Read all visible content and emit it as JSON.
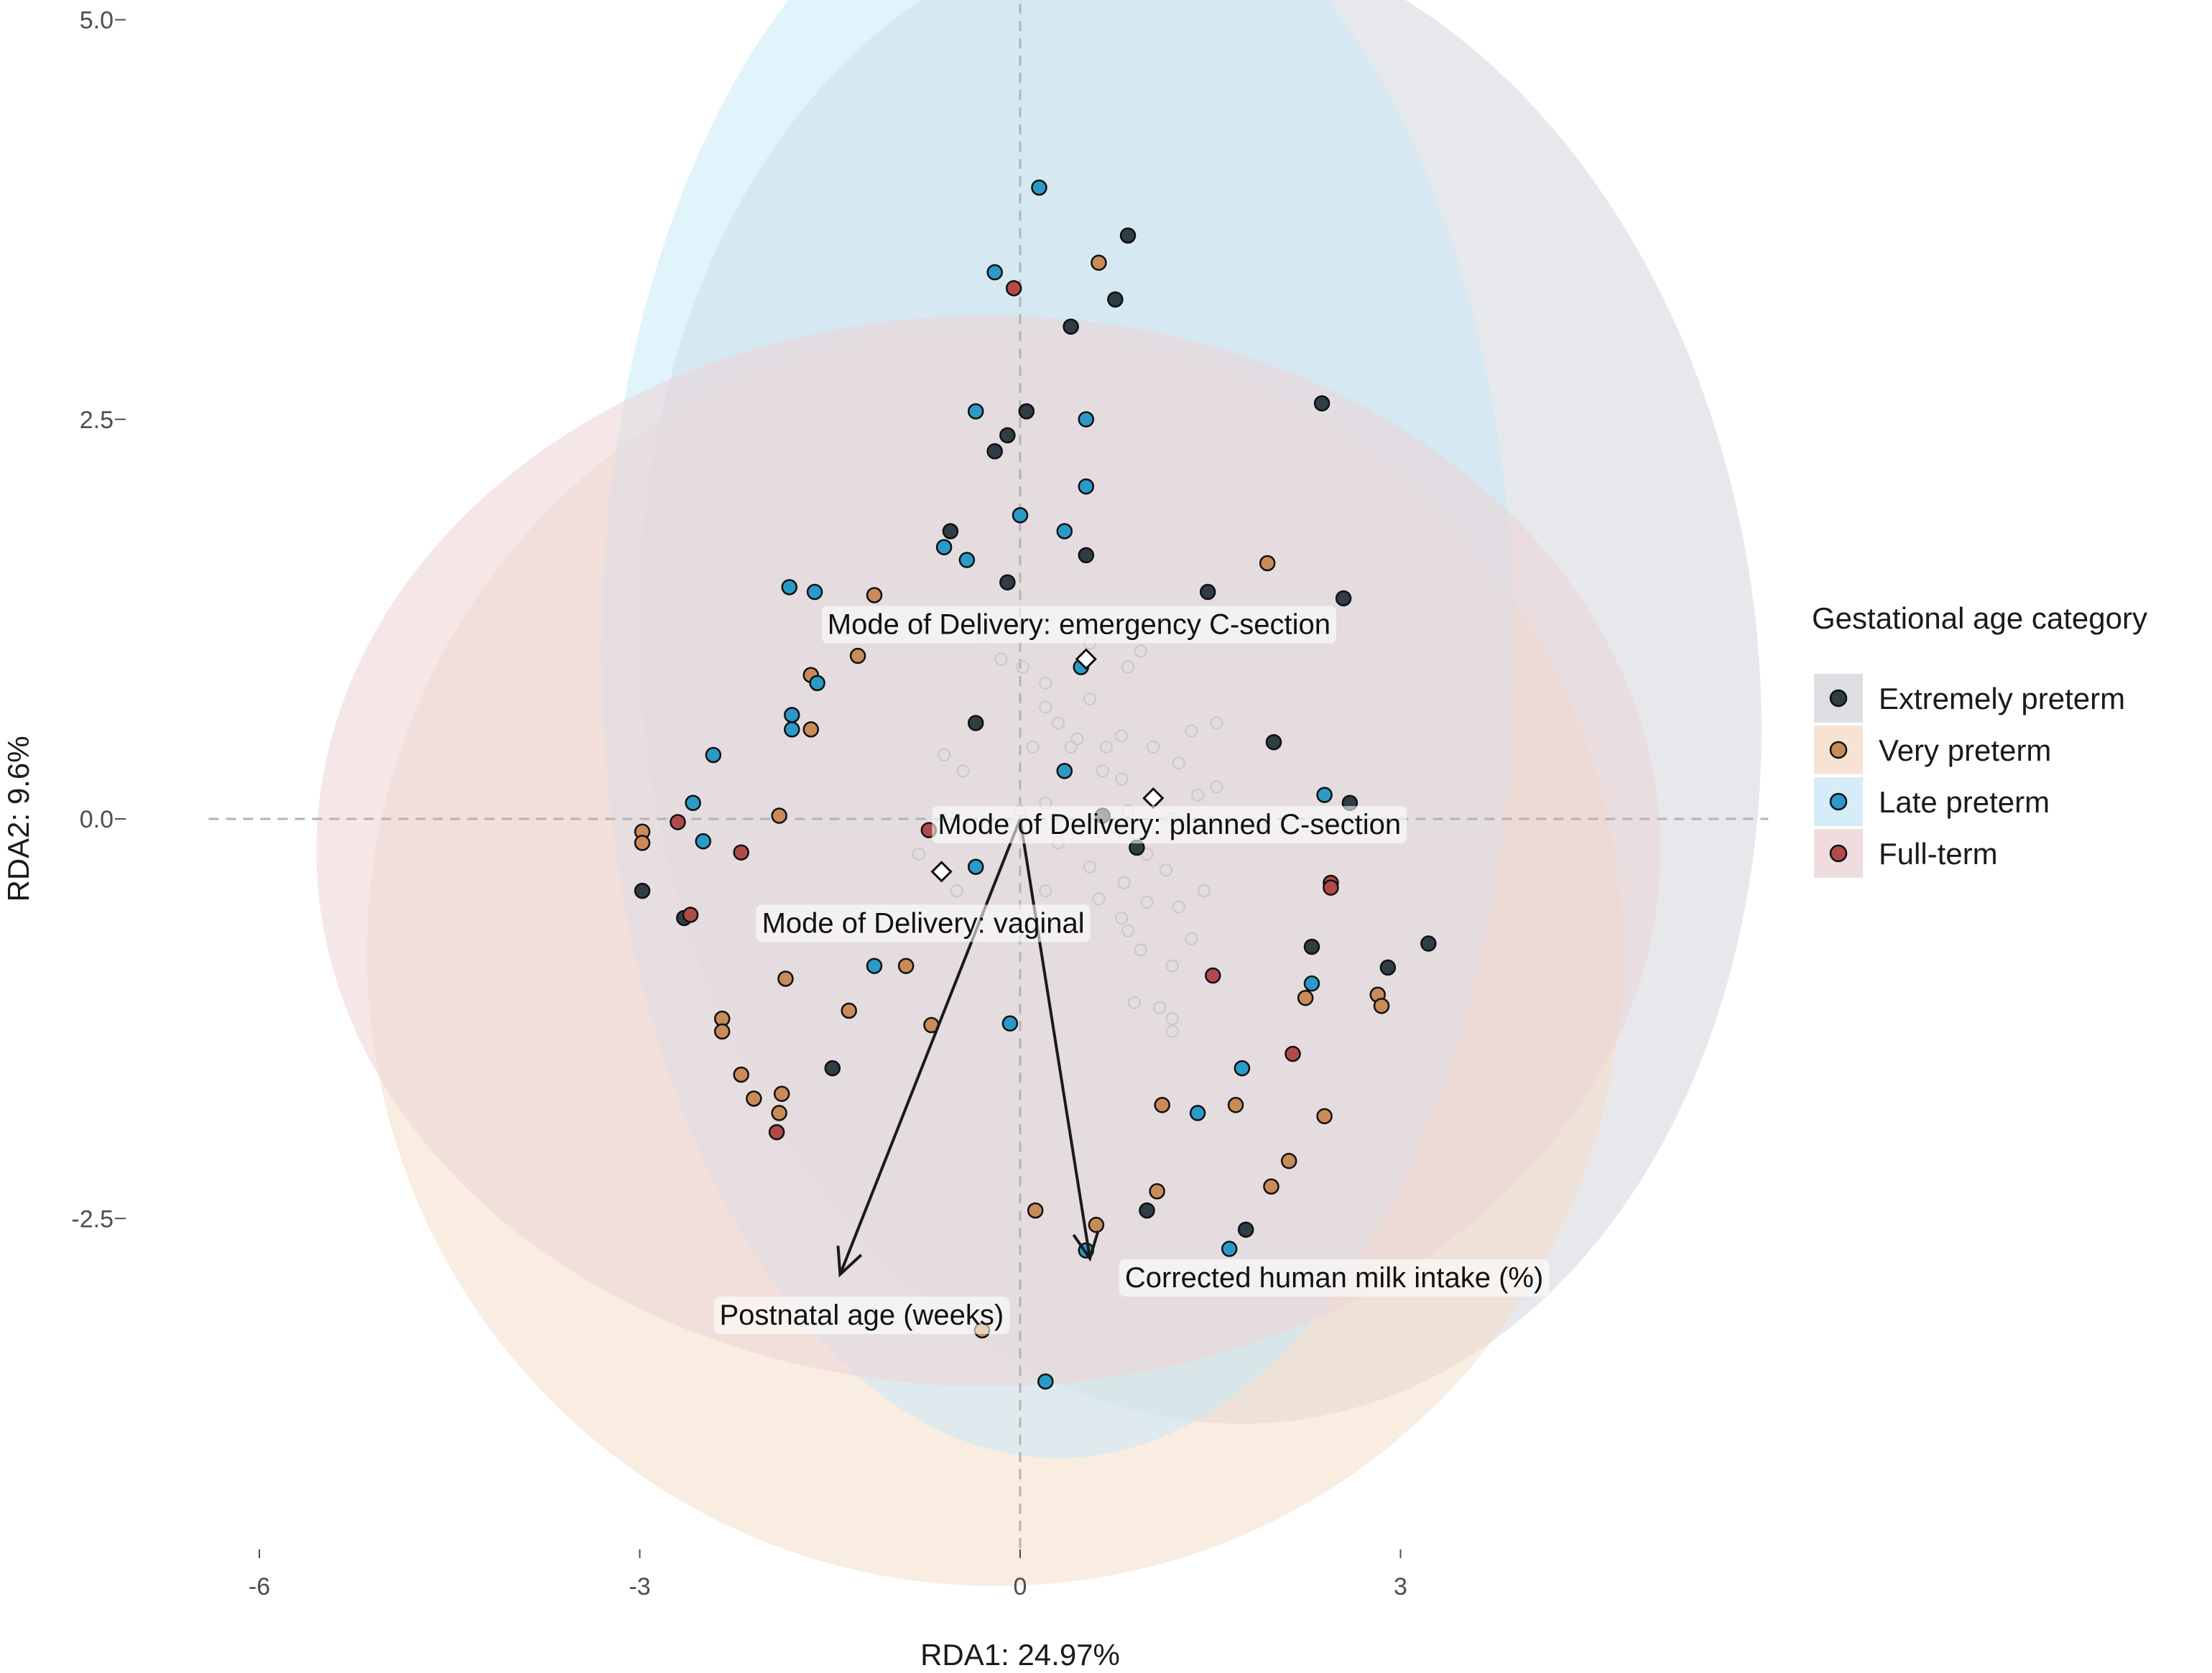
{
  "chart_data": {
    "type": "scatter",
    "xlabel": "RDA1: 24.97%",
    "ylabel": "RDA2: 9.6%",
    "xlim": [
      -6.4,
      5.9
    ],
    "ylim": [
      -4.6,
      5.1
    ],
    "x_ticks": [
      {
        "value": -6,
        "label": "-6"
      },
      {
        "value": -3,
        "label": "-3"
      },
      {
        "value": 0,
        "label": "0"
      },
      {
        "value": 3,
        "label": "3"
      }
    ],
    "y_ticks": [
      {
        "value": 5.0,
        "label": "5.0"
      },
      {
        "value": 2.5,
        "label": "2.5"
      },
      {
        "value": 0.0,
        "label": "0.0"
      },
      {
        "value": -2.5,
        "label": "-2.5"
      }
    ],
    "grid": false,
    "reference_lines": {
      "x": 0,
      "y": 0,
      "style": "dashed",
      "color": "#b3b3b3"
    },
    "legend": {
      "title": "Gestational age category",
      "placement": "right"
    },
    "series": [
      {
        "name": "Extremely preterm",
        "color": "#2f3d44",
        "ellipse_color": "#d4d6da",
        "ellipse": {
          "cx": 1.42,
          "cy": 0.9,
          "rx": 4.4,
          "ry": 4.7,
          "angle_deg": -7
        },
        "points": [
          [
            0.85,
            3.65
          ],
          [
            0.75,
            3.25
          ],
          [
            0.4,
            3.08
          ],
          [
            2.38,
            2.6
          ],
          [
            0.05,
            2.55
          ],
          [
            -0.1,
            2.4
          ],
          [
            -0.2,
            2.3
          ],
          [
            -0.55,
            1.8
          ],
          [
            0.52,
            1.65
          ],
          [
            -0.1,
            1.48
          ],
          [
            1.48,
            1.42
          ],
          [
            2.55,
            1.38
          ],
          [
            -0.35,
            0.6
          ],
          [
            2.0,
            0.48
          ],
          [
            2.6,
            0.1
          ],
          [
            0.65,
            0.02
          ],
          [
            0.92,
            -0.18
          ],
          [
            -2.98,
            -0.45
          ],
          [
            -2.65,
            -0.62
          ],
          [
            2.3,
            -0.8
          ],
          [
            3.22,
            -0.78
          ],
          [
            2.9,
            -0.93
          ],
          [
            -1.48,
            -1.56
          ],
          [
            1.78,
            -2.57
          ],
          [
            1.0,
            -2.45
          ]
        ]
      },
      {
        "name": "Very preterm",
        "color": "#c98b58",
        "ellipse_color": "#f4dcc9",
        "ellipse": {
          "cx": -0.2,
          "cy": -0.85,
          "rx": 4.95,
          "ry": 3.95,
          "angle_deg": -10
        },
        "points": [
          [
            0.62,
            3.48
          ],
          [
            1.95,
            1.6
          ],
          [
            -1.15,
            1.4
          ],
          [
            -1.28,
            1.02
          ],
          [
            -1.65,
            0.9
          ],
          [
            -1.65,
            0.56
          ],
          [
            -1.9,
            0.02
          ],
          [
            -2.98,
            -0.08
          ],
          [
            -2.98,
            -0.15
          ],
          [
            -1.85,
            -1.0
          ],
          [
            -0.9,
            -0.92
          ],
          [
            -1.35,
            -1.2
          ],
          [
            -0.7,
            -1.29
          ],
          [
            -2.35,
            -1.25
          ],
          [
            -2.35,
            -1.33
          ],
          [
            -2.2,
            -1.6
          ],
          [
            -2.1,
            -1.75
          ],
          [
            -1.88,
            -1.72
          ],
          [
            -1.9,
            -1.84
          ],
          [
            2.25,
            -1.12
          ],
          [
            2.82,
            -1.1
          ],
          [
            2.85,
            -1.17
          ],
          [
            1.12,
            -1.79
          ],
          [
            1.7,
            -1.79
          ],
          [
            2.4,
            -1.86
          ],
          [
            2.12,
            -2.14
          ],
          [
            1.98,
            -2.3
          ],
          [
            1.08,
            -2.33
          ],
          [
            0.12,
            -2.45
          ],
          [
            0.6,
            -2.54
          ],
          [
            -0.3,
            -3.2
          ]
        ]
      },
      {
        "name": "Late preterm",
        "color": "#2a9ac9",
        "ellipse_color": "#c9e9f7",
        "ellipse": {
          "cx": 0.3,
          "cy": 1.05,
          "rx": 3.6,
          "ry": 5.05,
          "angle_deg": 0
        },
        "points": [
          [
            0.15,
            3.95
          ],
          [
            -0.2,
            3.42
          ],
          [
            -0.35,
            2.55
          ],
          [
            0.52,
            2.5
          ],
          [
            0.52,
            2.08
          ],
          [
            0.0,
            1.9
          ],
          [
            0.35,
            1.8
          ],
          [
            -0.6,
            1.7
          ],
          [
            -0.42,
            1.62
          ],
          [
            -1.82,
            1.45
          ],
          [
            -1.62,
            1.42
          ],
          [
            -1.6,
            0.85
          ],
          [
            0.48,
            0.95
          ],
          [
            -1.8,
            0.65
          ],
          [
            -1.8,
            0.56
          ],
          [
            -2.42,
            0.4
          ],
          [
            0.35,
            0.3
          ],
          [
            2.4,
            0.15
          ],
          [
            -2.58,
            0.1
          ],
          [
            -2.5,
            -0.14
          ],
          [
            -0.35,
            -0.3
          ],
          [
            -1.15,
            -0.92
          ],
          [
            2.3,
            -1.03
          ],
          [
            -0.08,
            -1.28
          ],
          [
            1.75,
            -1.56
          ],
          [
            1.4,
            -1.84
          ],
          [
            1.65,
            -2.69
          ],
          [
            0.52,
            -2.7
          ],
          [
            0.2,
            -3.52
          ]
        ]
      },
      {
        "name": "Full-term",
        "color": "#b14a4b",
        "ellipse_color": "#ecd3d6",
        "ellipse": {
          "cx": -0.25,
          "cy": -0.2,
          "rx": 5.3,
          "ry": 3.35,
          "angle_deg": 0
        },
        "points": [
          [
            -0.05,
            3.32
          ],
          [
            -2.7,
            -0.02
          ],
          [
            -2.2,
            -0.21
          ],
          [
            -0.72,
            -0.07
          ],
          [
            -2.6,
            -0.6
          ],
          [
            2.45,
            -0.4
          ],
          [
            2.45,
            -0.43
          ],
          [
            1.52,
            -0.98
          ],
          [
            2.15,
            -1.47
          ],
          [
            -1.92,
            -1.96
          ]
        ]
      }
    ],
    "sample_points": {
      "color": "#c8c8c8",
      "points": [
        [
          -0.3,
          1.15
        ],
        [
          -0.15,
          1.0
        ],
        [
          0.02,
          0.95
        ],
        [
          0.2,
          0.85
        ],
        [
          0.55,
          0.75
        ],
        [
          0.95,
          1.05
        ],
        [
          0.55,
          1.1
        ],
        [
          0.85,
          0.95
        ],
        [
          0.3,
          0.6
        ],
        [
          0.8,
          0.52
        ],
        [
          0.1,
          0.45
        ],
        [
          0.45,
          0.5
        ],
        [
          0.2,
          0.7
        ],
        [
          1.35,
          0.55
        ],
        [
          1.55,
          0.6
        ],
        [
          -0.6,
          0.4
        ],
        [
          -0.45,
          0.3
        ],
        [
          0.68,
          0.45
        ],
        [
          1.05,
          0.45
        ],
        [
          1.25,
          0.35
        ],
        [
          0.8,
          0.25
        ],
        [
          0.65,
          0.3
        ],
        [
          0.4,
          0.45
        ],
        [
          1.4,
          0.15
        ],
        [
          1.55,
          0.2
        ],
        [
          0.85,
          0.05
        ],
        [
          1.2,
          0.0
        ],
        [
          0.2,
          0.1
        ],
        [
          0.75,
          -0.05
        ],
        [
          0.0,
          0.05
        ],
        [
          -0.05,
          -0.05
        ],
        [
          0.3,
          -0.15
        ],
        [
          1.0,
          -0.22
        ],
        [
          1.15,
          -0.32
        ],
        [
          0.55,
          -0.3
        ],
        [
          0.82,
          -0.4
        ],
        [
          0.62,
          -0.5
        ],
        [
          0.8,
          -0.62
        ],
        [
          0.85,
          -0.7
        ],
        [
          1.0,
          -0.52
        ],
        [
          0.2,
          -0.45
        ],
        [
          -0.5,
          -0.45
        ],
        [
          -0.8,
          -0.22
        ],
        [
          1.25,
          -0.55
        ],
        [
          1.45,
          -0.45
        ],
        [
          1.35,
          -0.75
        ],
        [
          0.95,
          -0.82
        ],
        [
          1.2,
          -0.92
        ],
        [
          0.9,
          -1.15
        ],
        [
          1.1,
          -1.18
        ],
        [
          1.2,
          -1.25
        ],
        [
          1.2,
          -1.33
        ]
      ]
    },
    "centroids": [
      {
        "label": "Mode of Delivery: emergency C-section",
        "x": 0.52,
        "y": 1.0
      },
      {
        "label": "Mode of Delivery: planned C-section",
        "x": 1.05,
        "y": 0.13
      },
      {
        "label": "Mode of Delivery: vaginal",
        "x": -0.62,
        "y": -0.33
      }
    ],
    "vectors": [
      {
        "label": "Postnatal age (weeks)",
        "x": -1.42,
        "y": -2.85
      },
      {
        "label": "Corrected human milk intake (%)",
        "x": 0.55,
        "y": -2.75
      }
    ]
  }
}
